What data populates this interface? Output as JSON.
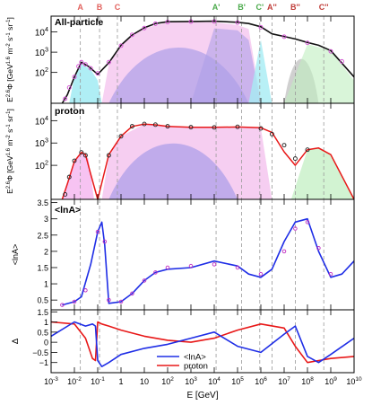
{
  "chart_data": [
    {
      "type": "line",
      "panel_label": "All-particle",
      "ylabel": "E^{2.6}Φ [GeV^{1.6} m^{-2} s^{-1} sr^{-1}]",
      "yscale": "log",
      "ylim": [
        3,
        60000
      ],
      "yticks": [
        "10^2",
        "10^3",
        "10^4"
      ],
      "series": [
        {
          "role": "model",
          "x": [
            0.003,
            0.005,
            0.01,
            0.02,
            0.04,
            0.1,
            0.3,
            1,
            3,
            10,
            30,
            100,
            1000,
            10000,
            100000,
            300000,
            1000000,
            3000000,
            10000000,
            30000000,
            100000000,
            300000000,
            1000000000,
            10000000000
          ],
          "values": [
            3,
            8,
            60,
            320,
            200,
            80,
            300,
            2200,
            7000,
            16000,
            26000,
            32000,
            33000,
            34000,
            30000,
            26000,
            18000,
            8000,
            6000,
            4500,
            3000,
            2200,
            1200,
            60
          ]
        },
        {
          "role": "data",
          "x": [
            0.004,
            0.006,
            0.01,
            0.015,
            0.02,
            0.03,
            0.05,
            0.1,
            0.3,
            1,
            3,
            10,
            30,
            100,
            1000,
            10000,
            100000,
            1000000,
            10000000,
            100000000,
            1000000000,
            3000000000
          ],
          "values": [
            5,
            18,
            60,
            200,
            320,
            250,
            160,
            90,
            320,
            2100,
            7200,
            15500,
            25500,
            31000,
            32500,
            33000,
            29000,
            17000,
            5800,
            2900,
            1100,
            350
          ]
        }
      ]
    },
    {
      "type": "line",
      "panel_label": "proton",
      "ylabel": "E^{2.6}Φ [GeV^{1.6} m^{-2} s^{-1} sr^{-1}]",
      "yscale": "log",
      "ylim": [
        3,
        60000
      ],
      "yticks": [
        "10^2",
        "10^3",
        "10^4"
      ],
      "series": [
        {
          "role": "model",
          "x": [
            0.003,
            0.005,
            0.01,
            0.02,
            0.03,
            0.05,
            0.1,
            0.3,
            1,
            3,
            10,
            30,
            100,
            1000,
            10000,
            100000,
            1000000,
            3000000,
            10000000,
            30000000,
            100000000,
            300000000,
            1000000000,
            10000000000
          ],
          "values": [
            3,
            15,
            150,
            380,
            300,
            40,
            3,
            300,
            2000,
            5500,
            7000,
            6500,
            5500,
            5000,
            5000,
            5200,
            4800,
            3000,
            400,
            100,
            500,
            600,
            300,
            3
          ]
        },
        {
          "role": "data",
          "x": [
            0.004,
            0.006,
            0.01,
            0.02,
            0.03,
            0.3,
            1,
            3,
            10,
            30,
            100,
            1000,
            10000,
            100000,
            1000000,
            3000000,
            10000000,
            30000000,
            100000000
          ],
          "values": [
            5,
            30,
            160,
            380,
            280,
            280,
            2000,
            5600,
            7100,
            6600,
            5600,
            5100,
            5000,
            5300,
            4500,
            2500,
            800,
            200,
            500
          ]
        }
      ]
    },
    {
      "type": "line",
      "panel_label": "<lnA>",
      "ylabel": "<lnA>",
      "ylim": [
        0.2,
        3.6
      ],
      "yticks": [
        "0.5",
        "1",
        "1.5",
        "2",
        "2.5",
        "3",
        "3.5"
      ],
      "series": [
        {
          "role": "model",
          "x": [
            0.003,
            0.01,
            0.02,
            0.05,
            0.1,
            0.15,
            0.2,
            0.3,
            1,
            3,
            10,
            30,
            100,
            1000,
            10000,
            100000,
            300000,
            1000000,
            3000000,
            10000000,
            30000000,
            100000000,
            300000000,
            1000000000,
            3000000000,
            10000000000
          ],
          "values": [
            0.35,
            0.45,
            0.6,
            1.6,
            2.6,
            2.9,
            2.2,
            0.4,
            0.45,
            0.7,
            1.1,
            1.35,
            1.45,
            1.5,
            1.7,
            1.55,
            1.3,
            1.2,
            1.45,
            2.3,
            2.9,
            3.0,
            2.0,
            1.2,
            1.3,
            1.7
          ]
        },
        {
          "role": "data",
          "x": [
            0.003,
            0.01,
            0.03,
            0.1,
            0.2,
            0.3,
            1,
            3,
            10,
            30,
            100,
            1000,
            10000,
            100000,
            1000000,
            10000000,
            30000000,
            100000000,
            300000000,
            1000000000
          ],
          "values": [
            0.35,
            0.45,
            0.8,
            2.6,
            2.3,
            0.5,
            0.45,
            0.7,
            1.1,
            1.35,
            1.5,
            1.55,
            1.6,
            1.5,
            1.3,
            2.0,
            2.7,
            2.9,
            2.1,
            1.3
          ]
        }
      ]
    },
    {
      "type": "line",
      "panel_label": "Δ",
      "ylabel": "Δ",
      "ylim": [
        -1.5,
        1.6
      ],
      "yticks": [
        "−1",
        "−0.5",
        "0",
        "0.5",
        "1",
        "1.5"
      ],
      "legend": [
        "<lnA>",
        "proton"
      ],
      "legend_position": "bottom-center",
      "series": [
        {
          "name": "<lnA>",
          "color": "#1f2ee6",
          "x": [
            0.001,
            0.01,
            0.03,
            0.06,
            0.08,
            0.1,
            0.15,
            0.3,
            1,
            10,
            100,
            1000,
            10000,
            100000,
            1000000,
            10000000,
            30000000,
            100000000,
            300000000,
            1000000000,
            10000000000
          ],
          "values": [
            0.3,
            1.0,
            0.8,
            0.9,
            0.8,
            -0.9,
            -1.2,
            -1.0,
            -0.6,
            -0.3,
            -0.1,
            0.2,
            0.5,
            -0.2,
            -0.5,
            0.4,
            0.8,
            -0.7,
            -1.0,
            -0.6,
            0.2
          ]
        },
        {
          "name": "proton",
          "color": "#e81818",
          "x": [
            0.001,
            0.01,
            0.03,
            0.06,
            0.08,
            0.1,
            0.15,
            0.3,
            1,
            10,
            100,
            1000,
            10000,
            100000,
            1000000,
            10000000,
            30000000,
            100000000,
            300000000,
            1000000000,
            10000000000
          ],
          "values": [
            1.0,
            0.9,
            0.2,
            -0.8,
            -0.9,
            1.0,
            0.9,
            0.8,
            0.6,
            0.3,
            0.1,
            0.0,
            0.2,
            0.6,
            0.9,
            0.7,
            -0.2,
            -1.0,
            -0.9,
            -0.8,
            -0.7
          ]
        }
      ]
    }
  ],
  "x_axis": {
    "label": "E [GeV]",
    "scale": "log",
    "xlim": [
      0.001,
      10000000000
    ],
    "tick_labels": [
      "10^-3",
      "10^-2",
      "10^-1",
      "1",
      "10",
      "10^2",
      "10^3",
      "10^4",
      "10^5",
      "10^6",
      "10^7",
      "10^8",
      "10^9",
      "10^10"
    ]
  },
  "markers": [
    {
      "label": "A",
      "x": 0.018,
      "color": "#e2625e"
    },
    {
      "label": "B",
      "x": 0.12,
      "color": "#e2625e"
    },
    {
      "label": "C",
      "x": 0.7,
      "color": "#e2625e"
    },
    {
      "label": "A'",
      "x": 12000,
      "color": "#4caa4c"
    },
    {
      "label": "B'",
      "x": 150000,
      "color": "#4caa4c"
    },
    {
      "label": "C'",
      "x": 900000,
      "color": "#4caa4c"
    },
    {
      "label": "A''",
      "x": 3000000,
      "color": "#c03c38"
    },
    {
      "label": "B''",
      "x": 30000000,
      "color": "#c03c38"
    },
    {
      "label": "C''",
      "x": 500000000,
      "color": "#c03c38"
    }
  ],
  "colors": {
    "model_line": "#111111",
    "lnA_line": "#1f2ee6",
    "proton_line": "#e81818",
    "violet_area": "#ad9fe8",
    "pink_area": "#f4c2ee",
    "cyan_area": "#a6ecf4",
    "green_area": "#bfeebf",
    "grey_area": "#c8c8c8"
  }
}
